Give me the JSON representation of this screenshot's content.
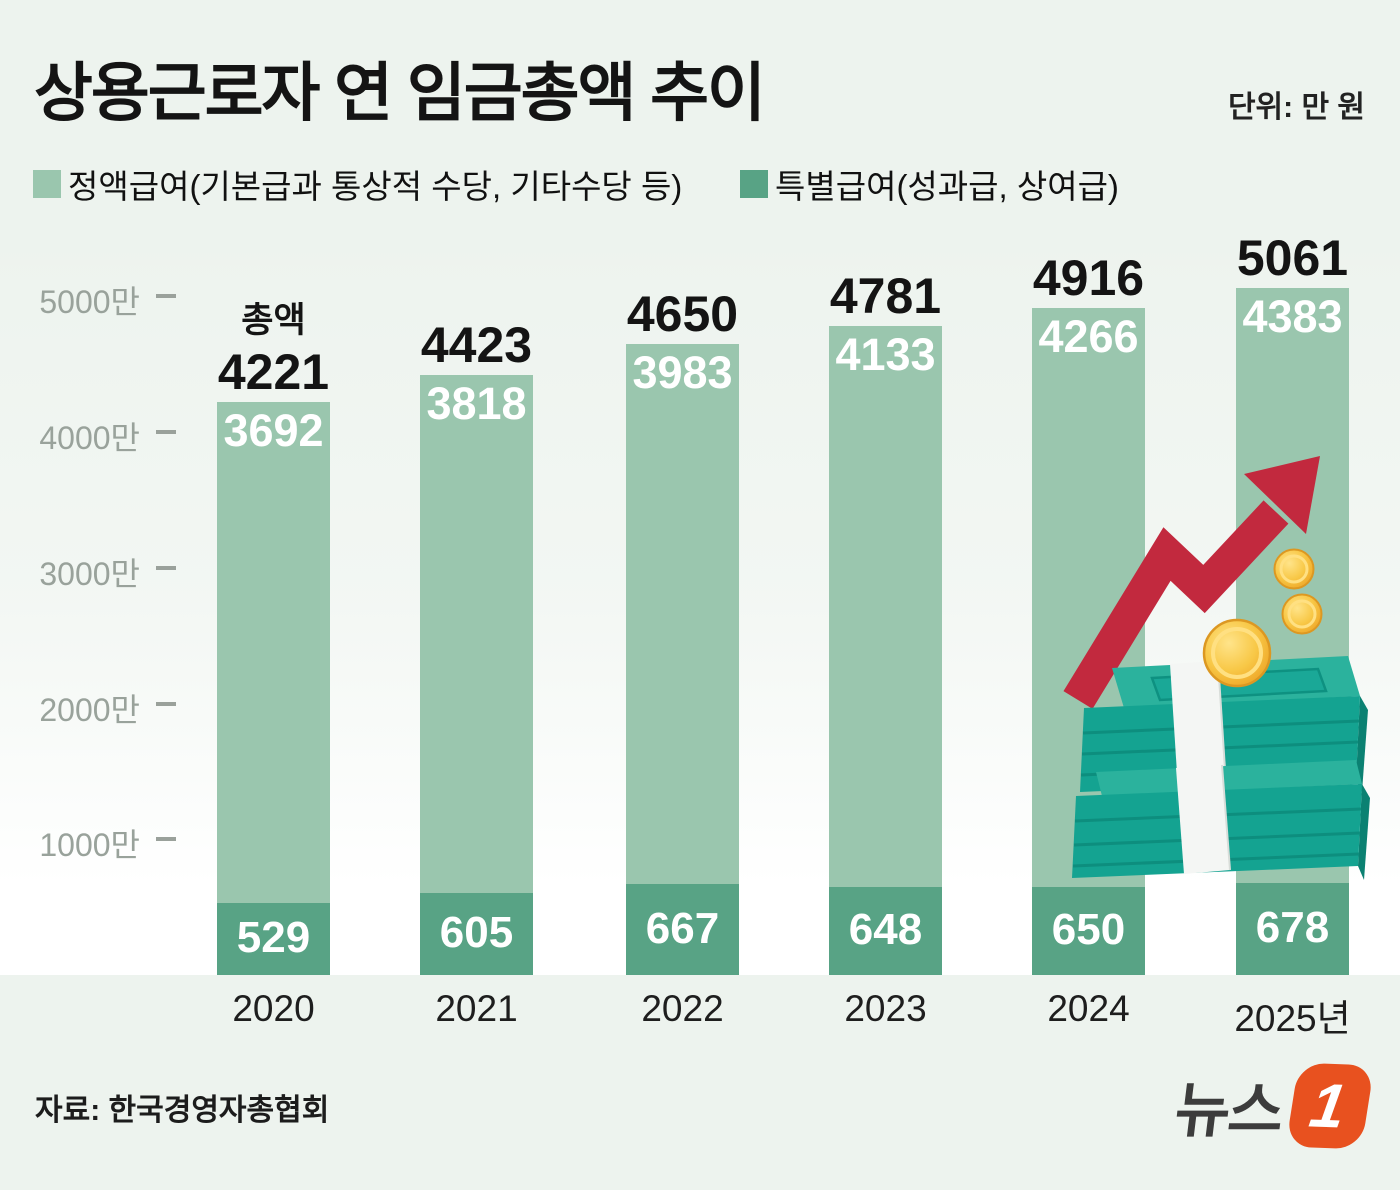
{
  "title": "상용근로자 연 임금총액 추이",
  "unit_label": "단위: 만 원",
  "legend": [
    {
      "label": "정액급여(기본급과 통상적 수당, 기타수당 등)",
      "color": "#9ac6ae"
    },
    {
      "label": "특별급여(성과급, 상여급)",
      "color": "#58a385"
    }
  ],
  "chart_data": {
    "type": "bar",
    "stacked": true,
    "title": "상용근로자 연 임금총액 추이",
    "unit": "만 원",
    "categories": [
      "2020",
      "2021",
      "2022",
      "2023",
      "2024",
      "2025년"
    ],
    "series": [
      {
        "name": "정액급여(기본급과 통상적 수당, 기타수당 등)",
        "values": [
          3692,
          3818,
          3983,
          4133,
          4266,
          4383
        ],
        "color": "#9ac6ae",
        "label_color": "#ffffff"
      },
      {
        "name": "특별급여(성과급, 상여급)",
        "values": [
          529,
          605,
          667,
          648,
          650,
          678
        ],
        "color": "#58a385",
        "label_color": "#ffffff"
      }
    ],
    "totals": [
      4221,
      4423,
      4650,
      4781,
      4916,
      5061
    ],
    "total_label_prefix": "총액",
    "y_ticks": [
      {
        "value": 5000,
        "label": "5000만"
      },
      {
        "value": 4000,
        "label": "4000만"
      },
      {
        "value": 3000,
        "label": "3000만"
      },
      {
        "value": 2000,
        "label": "2000만"
      },
      {
        "value": 1000,
        "label": "1000만"
      }
    ],
    "ylim": [
      0,
      5500
    ],
    "grid": false,
    "legend_position": "top"
  },
  "footer": {
    "source": "자료: 한국경영자총협회",
    "logo_text": "뉴스",
    "logo_number": "1"
  },
  "colors": {
    "background": "#edf3ee",
    "light_bar": "#9ac6ae",
    "dark_bar": "#58a385",
    "axis_text": "#99a29b",
    "arrow_red": "#c2293e",
    "money_teal": "#14a391",
    "coin_gold": "#f6bc38",
    "logo_orange": "#e8511f"
  }
}
